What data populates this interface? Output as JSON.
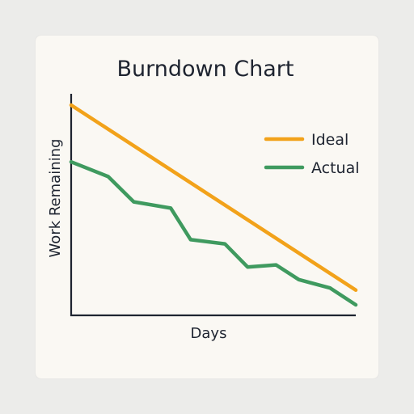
{
  "chart_data": {
    "type": "line",
    "title": "Burndown Chart",
    "xlabel": "Days",
    "ylabel": "Work Remaining",
    "legend_position": "top-right",
    "grid": false,
    "xlim": [
      0,
      10
    ],
    "ylim": [
      0,
      100
    ],
    "series": [
      {
        "name": "Ideal",
        "color": "#f2a21a",
        "x": [
          0,
          10
        ],
        "values": [
          100,
          12
        ]
      },
      {
        "name": "Actual",
        "color": "#3f9a5f",
        "x": [
          0,
          1.3,
          2.2,
          3.5,
          4.2,
          5.4,
          6.2,
          7.2,
          8.0,
          9.1,
          10.0
        ],
        "values": [
          73,
          66,
          54,
          51,
          36,
          34,
          23,
          24,
          17,
          13,
          5
        ]
      }
    ]
  }
}
